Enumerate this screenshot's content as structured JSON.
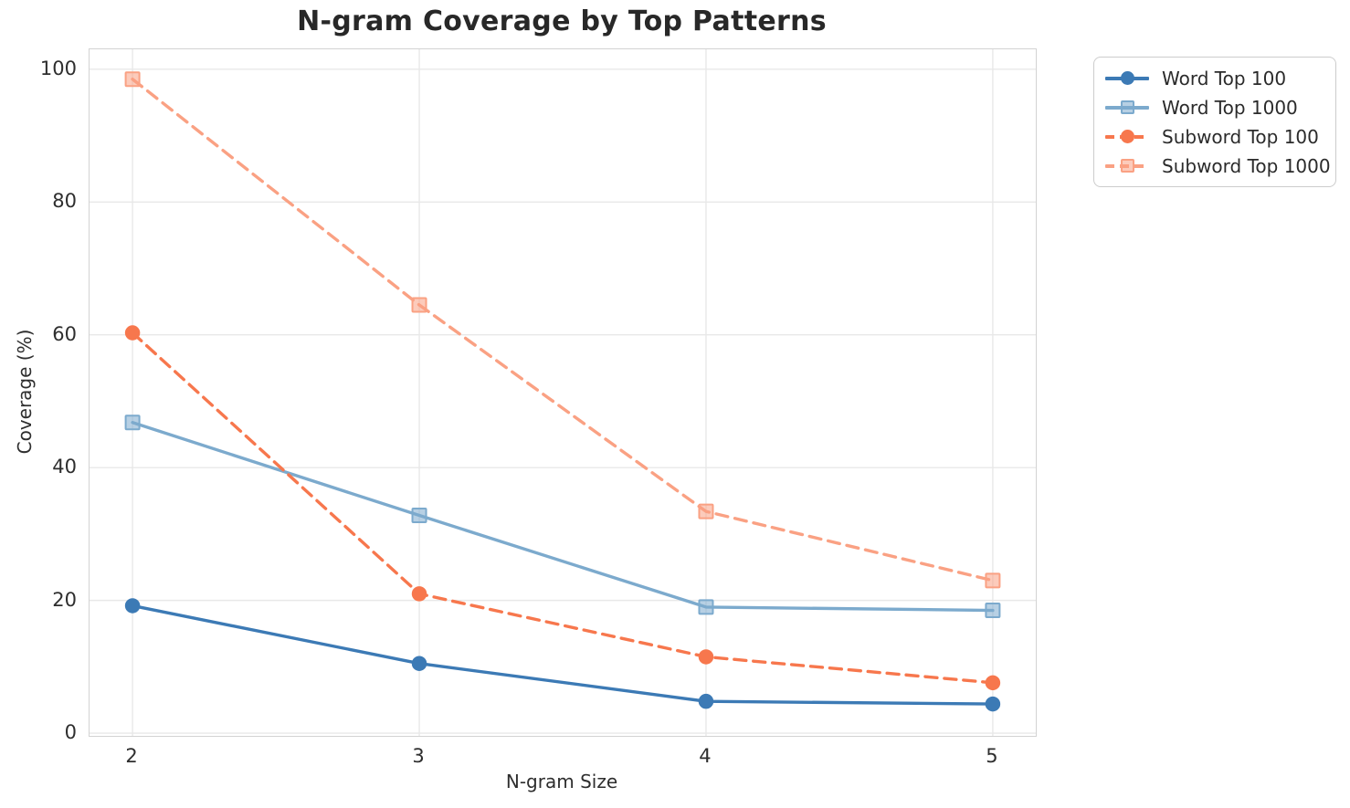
{
  "chart_data": {
    "type": "line",
    "title": "N-gram Coverage by Top Patterns",
    "xlabel": "N-gram Size",
    "ylabel": "Coverage (%)",
    "x": [
      2,
      3,
      4,
      5
    ],
    "xticks": [
      2,
      3,
      4,
      5
    ],
    "yticks": [
      0,
      20,
      40,
      60,
      80,
      100
    ],
    "xlim": [
      1.85,
      5.15
    ],
    "ylim": [
      -0.4,
      103.0
    ],
    "grid": true,
    "grid_color": "#e8e8e8",
    "spine_color": "#d3d3d3",
    "legend_position": "outside upper right",
    "series": [
      {
        "name": "Word Top 100",
        "values": [
          19.2,
          10.5,
          4.8,
          4.4
        ],
        "color": "#3c7ab5",
        "marker": "circle",
        "linestyle": "solid"
      },
      {
        "name": "Word Top 1000",
        "values": [
          46.8,
          32.8,
          19.0,
          18.5
        ],
        "color": "#7caacd",
        "marker": "square",
        "linestyle": "solid"
      },
      {
        "name": "Subword Top 100",
        "values": [
          60.3,
          21.0,
          11.5,
          7.6
        ],
        "color": "#f7774d",
        "marker": "circle",
        "linestyle": "dashed"
      },
      {
        "name": "Subword Top 1000",
        "values": [
          98.5,
          64.5,
          33.4,
          23.0
        ],
        "color": "#faa183",
        "marker": "square",
        "linestyle": "dashed"
      }
    ]
  }
}
